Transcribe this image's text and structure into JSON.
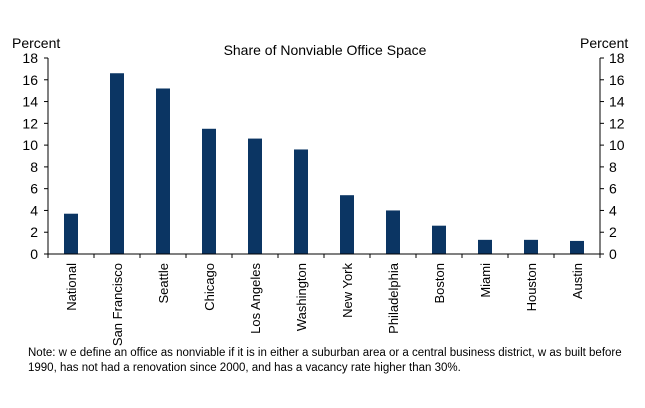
{
  "chart_data": {
    "type": "bar",
    "title": "Share of Nonviable  Office Space",
    "ylabel_left": "Percent",
    "ylabel_right": "Percent",
    "ylim": [
      0,
      18
    ],
    "ytick_step": 2,
    "yticks": [
      "0",
      "2",
      "4",
      "6",
      "8",
      "10",
      "12",
      "14",
      "16",
      "18"
    ],
    "grid": false,
    "categories": [
      "National",
      "San Francisco",
      "Seattle",
      "Chicago",
      "Los Angeles",
      "Washington",
      "New York",
      "Philadelphia",
      "Boston",
      "Miami",
      "Houston",
      "Austin"
    ],
    "values": [
      3.7,
      16.6,
      15.2,
      11.5,
      10.6,
      9.6,
      5.4,
      4.0,
      2.6,
      1.3,
      1.3,
      1.2
    ],
    "bar_color": "#0b3563"
  },
  "note": "Note: w e define an office as nonviable if it is in either a suburban area or a central business district, w as built before 1990, has not had a renovation since 2000, and has a vacancy rate higher than 30%."
}
